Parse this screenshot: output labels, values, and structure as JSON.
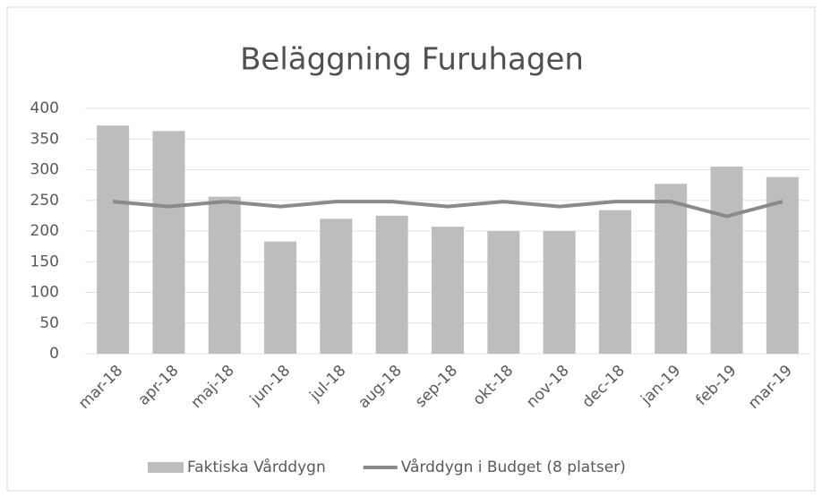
{
  "chart_data": {
    "type": "bar",
    "title": "Beläggning Furuhagen",
    "categories": [
      "mar-18",
      "apr-18",
      "maj-18",
      "jun-18",
      "jul-18",
      "aug-18",
      "sep-18",
      "okt-18",
      "nov-18",
      "dec-18",
      "jan-19",
      "feb-19",
      "mar-19"
    ],
    "series": [
      {
        "name": "Faktiska Vårddygn",
        "color": "#bdbdbd",
        "type": "bar",
        "values": [
          372,
          363,
          256,
          183,
          220,
          225,
          207,
          200,
          200,
          234,
          277,
          305,
          288
        ]
      },
      {
        "name": "Vårddygn i Budget (8 platser)",
        "color": "#8a8a8a",
        "type": "line",
        "values": [
          248,
          240,
          248,
          240,
          248,
          248,
          240,
          248,
          240,
          248,
          248,
          224,
          248
        ]
      }
    ],
    "ylim": [
      0,
      400
    ],
    "yticks": [
      0,
      50,
      100,
      150,
      200,
      250,
      300,
      350,
      400
    ],
    "grid": true,
    "legend": "bottom"
  }
}
